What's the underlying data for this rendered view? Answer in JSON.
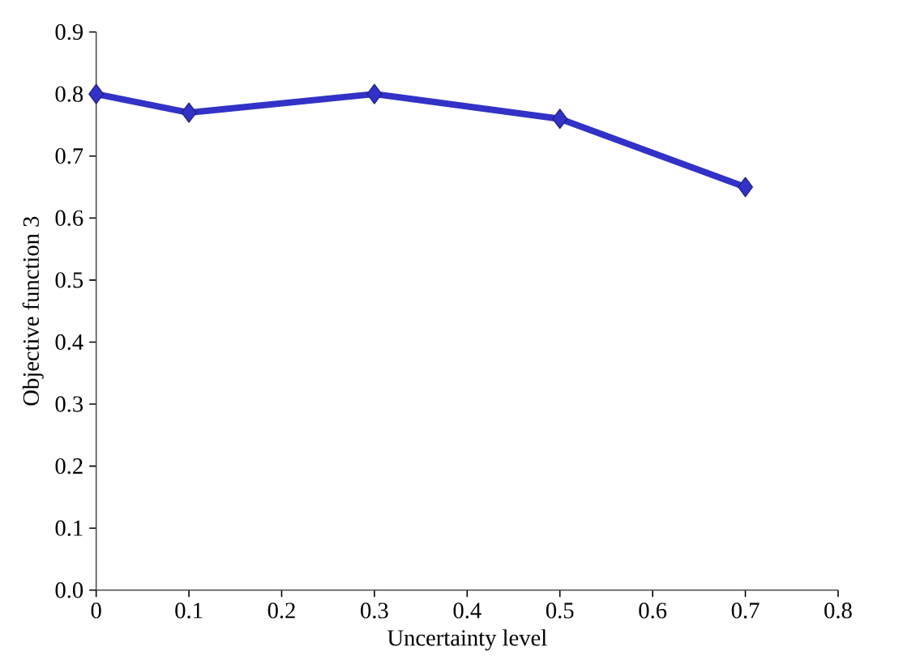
{
  "chart_data": {
    "type": "line",
    "xlabel": "Uncertainty level",
    "ylabel": "Objective function 3",
    "x": [
      0,
      0.1,
      0.3,
      0.5,
      0.7
    ],
    "series": [
      {
        "color": "#3232c8",
        "values": [
          0.8,
          0.77,
          0.8,
          0.76,
          0.65
        ]
      }
    ],
    "xlim": [
      0,
      0.8
    ],
    "ylim": [
      0,
      0.9
    ],
    "xticks": [
      0,
      0.1,
      0.2,
      0.3,
      0.4,
      0.5,
      0.6,
      0.7,
      0.8
    ],
    "yticks": [
      {
        "value": 0,
        "label": "0.0"
      },
      0.1,
      0.2,
      0.3,
      0.4,
      0.5,
      0.6,
      0.7,
      0.8,
      0.9
    ],
    "marker": "diamond",
    "line_style": "solid",
    "grid": false
  }
}
